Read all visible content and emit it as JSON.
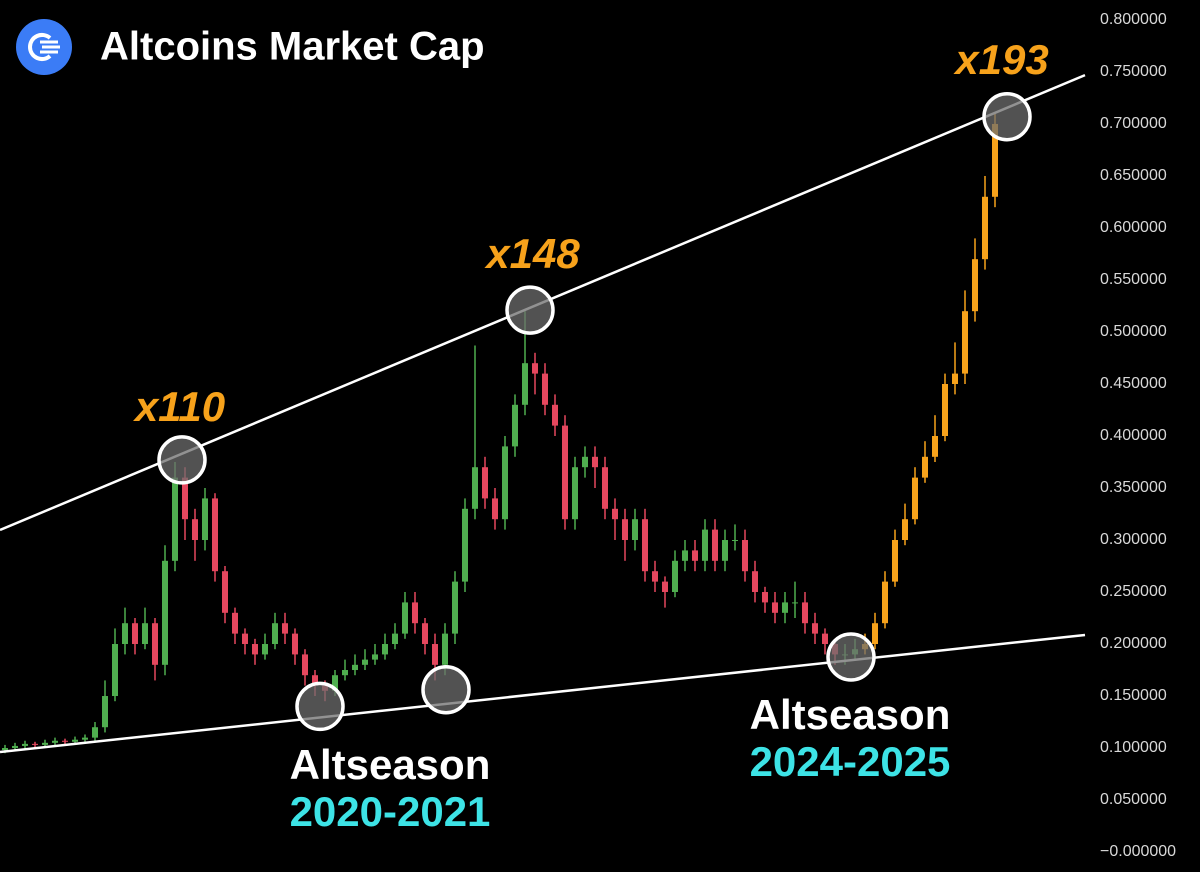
{
  "chart_data": {
    "type": "candlestick",
    "title": "Altcoins Market Cap",
    "ylim": [
      -0.0192,
      0.8192
    ],
    "xlim": [
      -0.5,
      108
    ],
    "yticks": [
      {
        "value": 0,
        "label": "−0.000000"
      },
      {
        "value": 0.05,
        "label": "0.050000"
      },
      {
        "value": 0.1,
        "label": "0.100000"
      },
      {
        "value": 0.15,
        "label": "0.150000"
      },
      {
        "value": 0.2,
        "label": "0.200000"
      },
      {
        "value": 0.25,
        "label": "0.250000"
      },
      {
        "value": 0.3,
        "label": "0.300000"
      },
      {
        "value": 0.35,
        "label": "0.350000"
      },
      {
        "value": 0.4,
        "label": "0.400000"
      },
      {
        "value": 0.45,
        "label": "0.450000"
      },
      {
        "value": 0.5,
        "label": "0.500000"
      },
      {
        "value": 0.55,
        "label": "0.550000"
      },
      {
        "value": 0.6,
        "label": "0.600000"
      },
      {
        "value": 0.65,
        "label": "0.650000"
      },
      {
        "value": 0.7,
        "label": "0.700000"
      },
      {
        "value": 0.75,
        "label": "0.750000"
      },
      {
        "value": 0.8,
        "label": "0.800000"
      }
    ],
    "series": [
      {
        "up_color": "#4fae4f",
        "down_color": "#e5475e",
        "x": [
          0,
          1,
          2,
          3,
          4,
          5,
          6,
          7,
          8,
          9,
          10,
          11,
          12,
          13,
          14,
          15,
          16,
          17,
          18,
          19,
          20,
          21,
          22,
          23,
          24,
          25,
          26,
          27,
          28,
          29,
          30,
          31,
          32,
          33,
          34,
          35,
          36,
          37,
          38,
          39,
          40,
          41,
          42,
          43,
          44,
          45,
          46,
          47,
          48,
          49,
          50,
          51,
          52,
          53,
          54,
          55,
          56,
          57,
          58,
          59,
          60,
          61,
          62,
          63,
          64,
          65,
          66,
          67,
          68,
          69,
          70,
          71,
          72,
          73,
          74,
          75,
          76,
          77,
          78,
          79,
          80,
          81,
          82,
          83,
          84,
          85
        ],
        "open": [
          0.098,
          0.1,
          0.102,
          0.104,
          0.103,
          0.105,
          0.107,
          0.106,
          0.108,
          0.11,
          0.12,
          0.15,
          0.2,
          0.22,
          0.2,
          0.22,
          0.18,
          0.28,
          0.36,
          0.32,
          0.3,
          0.34,
          0.27,
          0.23,
          0.21,
          0.2,
          0.19,
          0.2,
          0.22,
          0.21,
          0.19,
          0.17,
          0.16,
          0.155,
          0.17,
          0.175,
          0.18,
          0.185,
          0.19,
          0.2,
          0.21,
          0.24,
          0.22,
          0.2,
          0.18,
          0.21,
          0.26,
          0.33,
          0.37,
          0.34,
          0.32,
          0.39,
          0.43,
          0.47,
          0.46,
          0.43,
          0.41,
          0.32,
          0.37,
          0.38,
          0.37,
          0.33,
          0.32,
          0.3,
          0.32,
          0.27,
          0.26,
          0.25,
          0.28,
          0.29,
          0.28,
          0.31,
          0.28,
          0.3,
          0.3,
          0.27,
          0.25,
          0.24,
          0.23,
          0.24,
          0.24,
          0.22,
          0.21,
          0.2,
          0.19,
          0.19
        ],
        "high": [
          0.103,
          0.105,
          0.107,
          0.106,
          0.108,
          0.11,
          0.109,
          0.111,
          0.113,
          0.125,
          0.165,
          0.215,
          0.235,
          0.225,
          0.235,
          0.225,
          0.295,
          0.375,
          0.37,
          0.33,
          0.35,
          0.345,
          0.275,
          0.235,
          0.215,
          0.205,
          0.21,
          0.23,
          0.23,
          0.215,
          0.195,
          0.175,
          0.165,
          0.175,
          0.185,
          0.19,
          0.195,
          0.2,
          0.21,
          0.22,
          0.25,
          0.25,
          0.225,
          0.21,
          0.22,
          0.27,
          0.34,
          0.487,
          0.38,
          0.35,
          0.4,
          0.44,
          0.52,
          0.48,
          0.47,
          0.44,
          0.42,
          0.38,
          0.39,
          0.39,
          0.38,
          0.34,
          0.33,
          0.33,
          0.33,
          0.28,
          0.265,
          0.29,
          0.3,
          0.3,
          0.32,
          0.32,
          0.31,
          0.315,
          0.31,
          0.28,
          0.255,
          0.25,
          0.25,
          0.26,
          0.25,
          0.23,
          0.215,
          0.205,
          0.2,
          0.205
        ],
        "low": [
          0.095,
          0.097,
          0.099,
          0.1,
          0.1,
          0.102,
          0.103,
          0.104,
          0.105,
          0.107,
          0.115,
          0.145,
          0.19,
          0.19,
          0.195,
          0.165,
          0.17,
          0.27,
          0.3,
          0.28,
          0.29,
          0.26,
          0.22,
          0.2,
          0.19,
          0.18,
          0.185,
          0.195,
          0.2,
          0.18,
          0.16,
          0.15,
          0.145,
          0.15,
          0.165,
          0.17,
          0.175,
          0.18,
          0.185,
          0.195,
          0.205,
          0.21,
          0.19,
          0.165,
          0.17,
          0.2,
          0.25,
          0.32,
          0.33,
          0.31,
          0.31,
          0.38,
          0.42,
          0.44,
          0.42,
          0.4,
          0.31,
          0.31,
          0.36,
          0.35,
          0.32,
          0.3,
          0.28,
          0.29,
          0.26,
          0.25,
          0.235,
          0.245,
          0.27,
          0.27,
          0.27,
          0.27,
          0.27,
          0.29,
          0.26,
          0.24,
          0.23,
          0.22,
          0.22,
          0.225,
          0.21,
          0.2,
          0.19,
          0.18,
          0.18,
          0.185
        ],
        "close": [
          0.1,
          0.102,
          0.104,
          0.103,
          0.105,
          0.107,
          0.106,
          0.108,
          0.11,
          0.12,
          0.15,
          0.2,
          0.22,
          0.2,
          0.22,
          0.18,
          0.28,
          0.36,
          0.32,
          0.3,
          0.34,
          0.27,
          0.23,
          0.21,
          0.2,
          0.19,
          0.2,
          0.22,
          0.21,
          0.19,
          0.17,
          0.16,
          0.155,
          0.17,
          0.175,
          0.18,
          0.185,
          0.19,
          0.2,
          0.21,
          0.24,
          0.22,
          0.2,
          0.18,
          0.21,
          0.26,
          0.33,
          0.37,
          0.34,
          0.32,
          0.39,
          0.43,
          0.47,
          0.46,
          0.43,
          0.41,
          0.32,
          0.37,
          0.38,
          0.37,
          0.33,
          0.32,
          0.3,
          0.32,
          0.27,
          0.26,
          0.25,
          0.28,
          0.29,
          0.28,
          0.31,
          0.28,
          0.3,
          0.3,
          0.27,
          0.25,
          0.24,
          0.23,
          0.24,
          0.24,
          0.22,
          0.21,
          0.2,
          0.19,
          0.19,
          0.195
        ]
      },
      {
        "up_color": "#f7a21b",
        "down_color": "#f08a1a",
        "x": [
          86,
          87,
          88,
          89,
          90,
          91,
          92,
          93,
          94,
          95,
          96,
          97,
          98,
          99
        ],
        "open": [
          0.195,
          0.2,
          0.22,
          0.26,
          0.3,
          0.32,
          0.36,
          0.38,
          0.4,
          0.45,
          0.46,
          0.52,
          0.57,
          0.63
        ],
        "high": [
          0.21,
          0.23,
          0.27,
          0.31,
          0.335,
          0.37,
          0.395,
          0.42,
          0.46,
          0.49,
          0.54,
          0.59,
          0.65,
          0.71
        ],
        "low": [
          0.19,
          0.195,
          0.215,
          0.255,
          0.295,
          0.315,
          0.355,
          0.375,
          0.395,
          0.44,
          0.45,
          0.51,
          0.56,
          0.62
        ],
        "close": [
          0.2,
          0.22,
          0.26,
          0.3,
          0.32,
          0.36,
          0.38,
          0.4,
          0.45,
          0.46,
          0.52,
          0.57,
          0.63,
          0.7
        ]
      }
    ],
    "trendlines": [
      {
        "color": "#ffffff",
        "x": [
          -0.5,
          108
        ],
        "y": [
          0.3096,
          0.747
        ]
      },
      {
        "color": "#ffffff",
        "x": [
          -0.5,
          108
        ],
        "y": [
          0.0962,
          0.2087
        ]
      }
    ],
    "markers": [
      {
        "x": 17.7,
        "y": 0.377
      },
      {
        "x": 52.5,
        "y": 0.521
      },
      {
        "x": 100.2,
        "y": 0.707
      },
      {
        "x": 31.5,
        "y": 0.14
      },
      {
        "x": 44.1,
        "y": 0.156
      },
      {
        "x": 84.6,
        "y": 0.1875
      }
    ],
    "annotations": [
      "x110",
      "x148",
      "x193"
    ],
    "captions": [
      {
        "label": "Altseason",
        "years": "2020-2021"
      },
      {
        "label": "Altseason",
        "years": "2024-2025"
      }
    ]
  }
}
